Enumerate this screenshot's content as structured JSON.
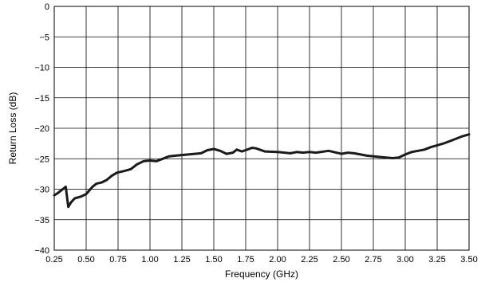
{
  "chart_data": {
    "type": "line",
    "title": "",
    "xlabel": "Frequency (GHz)",
    "ylabel": "Return Loss (dB)",
    "xlim": [
      0.25,
      3.5
    ],
    "ylim": [
      -40,
      0
    ],
    "grid": true,
    "xticks": [
      0.25,
      0.5,
      0.75,
      1.0,
      1.25,
      1.5,
      1.75,
      2.0,
      2.25,
      2.5,
      2.75,
      3.0,
      3.25,
      3.5
    ],
    "xtick_labels": [
      "0.25",
      "0.50",
      "0.75",
      "1.00",
      "1.25",
      "1.50",
      "1.75",
      "2.00",
      "2.25",
      "2.50",
      "2.75",
      "3.00",
      "3.25",
      "3.50"
    ],
    "yticks": [
      0,
      -5,
      -10,
      -15,
      -20,
      -25,
      -30,
      -35,
      -40
    ],
    "ytick_labels": [
      "0",
      "−5",
      "−10",
      "−15",
      "−20",
      "−25",
      "−30",
      "−35",
      "−40"
    ],
    "series": [
      {
        "name": "",
        "color": "#1a1a1a",
        "x": [
          0.25,
          0.28,
          0.31,
          0.34,
          0.36,
          0.38,
          0.41,
          0.46,
          0.5,
          0.55,
          0.58,
          0.62,
          0.66,
          0.7,
          0.74,
          0.8,
          0.85,
          0.9,
          0.95,
          1.0,
          1.05,
          1.1,
          1.15,
          1.2,
          1.3,
          1.4,
          1.45,
          1.5,
          1.55,
          1.6,
          1.65,
          1.68,
          1.72,
          1.75,
          1.8,
          1.83,
          1.9,
          2.0,
          2.1,
          2.15,
          2.2,
          2.25,
          2.3,
          2.4,
          2.5,
          2.55,
          2.6,
          2.7,
          2.8,
          2.9,
          2.95,
          3.0,
          3.05,
          3.1,
          3.15,
          3.2,
          3.25,
          3.3,
          3.35,
          3.4,
          3.45,
          3.5
        ],
        "values": [
          -31.0,
          -30.6,
          -30.1,
          -29.6,
          -32.9,
          -32.2,
          -31.5,
          -31.2,
          -30.8,
          -29.6,
          -29.1,
          -28.9,
          -28.5,
          -27.8,
          -27.3,
          -27.0,
          -26.7,
          -25.9,
          -25.4,
          -25.3,
          -25.4,
          -25.0,
          -24.6,
          -24.5,
          -24.3,
          -24.1,
          -23.6,
          -23.4,
          -23.7,
          -24.2,
          -24.0,
          -23.5,
          -23.8,
          -23.6,
          -23.2,
          -23.3,
          -23.8,
          -23.9,
          -24.1,
          -23.9,
          -24.0,
          -23.9,
          -24.0,
          -23.7,
          -24.2,
          -24.0,
          -24.1,
          -24.5,
          -24.7,
          -24.9,
          -24.8,
          -24.3,
          -23.9,
          -23.7,
          -23.5,
          -23.1,
          -22.8,
          -22.5,
          -22.1,
          -21.7,
          -21.3,
          -21.0
        ]
      }
    ]
  }
}
